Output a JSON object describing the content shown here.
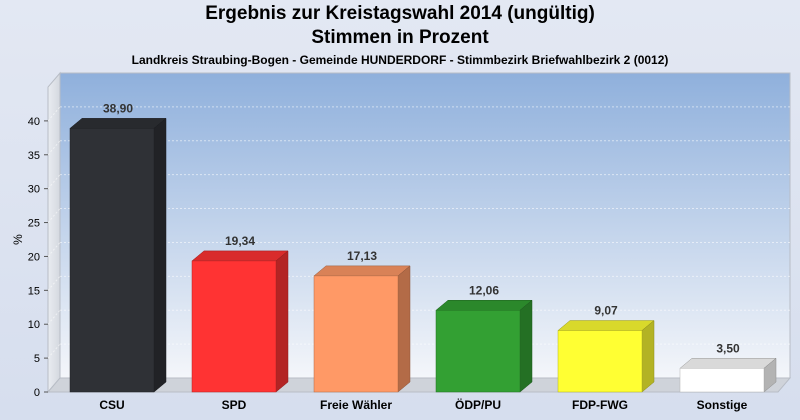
{
  "chart_data": {
    "type": "bar",
    "title": "Ergebnis zur Kreistagswahl 2014 (ungültig)",
    "title2": "Stimmen in Prozent",
    "subtitle": "Landkreis Straubing-Bogen - Gemeinde HUNDERDORF - Stimmbezirk Briefwahlbezirk 2 (0012)",
    "ylabel": "%",
    "ylim": [
      0,
      45
    ],
    "yticks": [
      0,
      5,
      10,
      15,
      20,
      25,
      30,
      35,
      40
    ],
    "categories": [
      "CSU",
      "SPD",
      "Freie Wähler",
      "ÖDP/PU",
      "FDP-FWG",
      "Sonstige"
    ],
    "values": [
      38.9,
      19.34,
      17.13,
      12.06,
      9.07,
      3.5
    ],
    "value_labels": [
      "38,90",
      "19,34",
      "17,13",
      "12,06",
      "9,07",
      "3,50"
    ],
    "colors": [
      "#2f3136",
      "#ff3333",
      "#ff9966",
      "#33a033",
      "#ffff33",
      "#ffffff"
    ],
    "grid": true
  }
}
